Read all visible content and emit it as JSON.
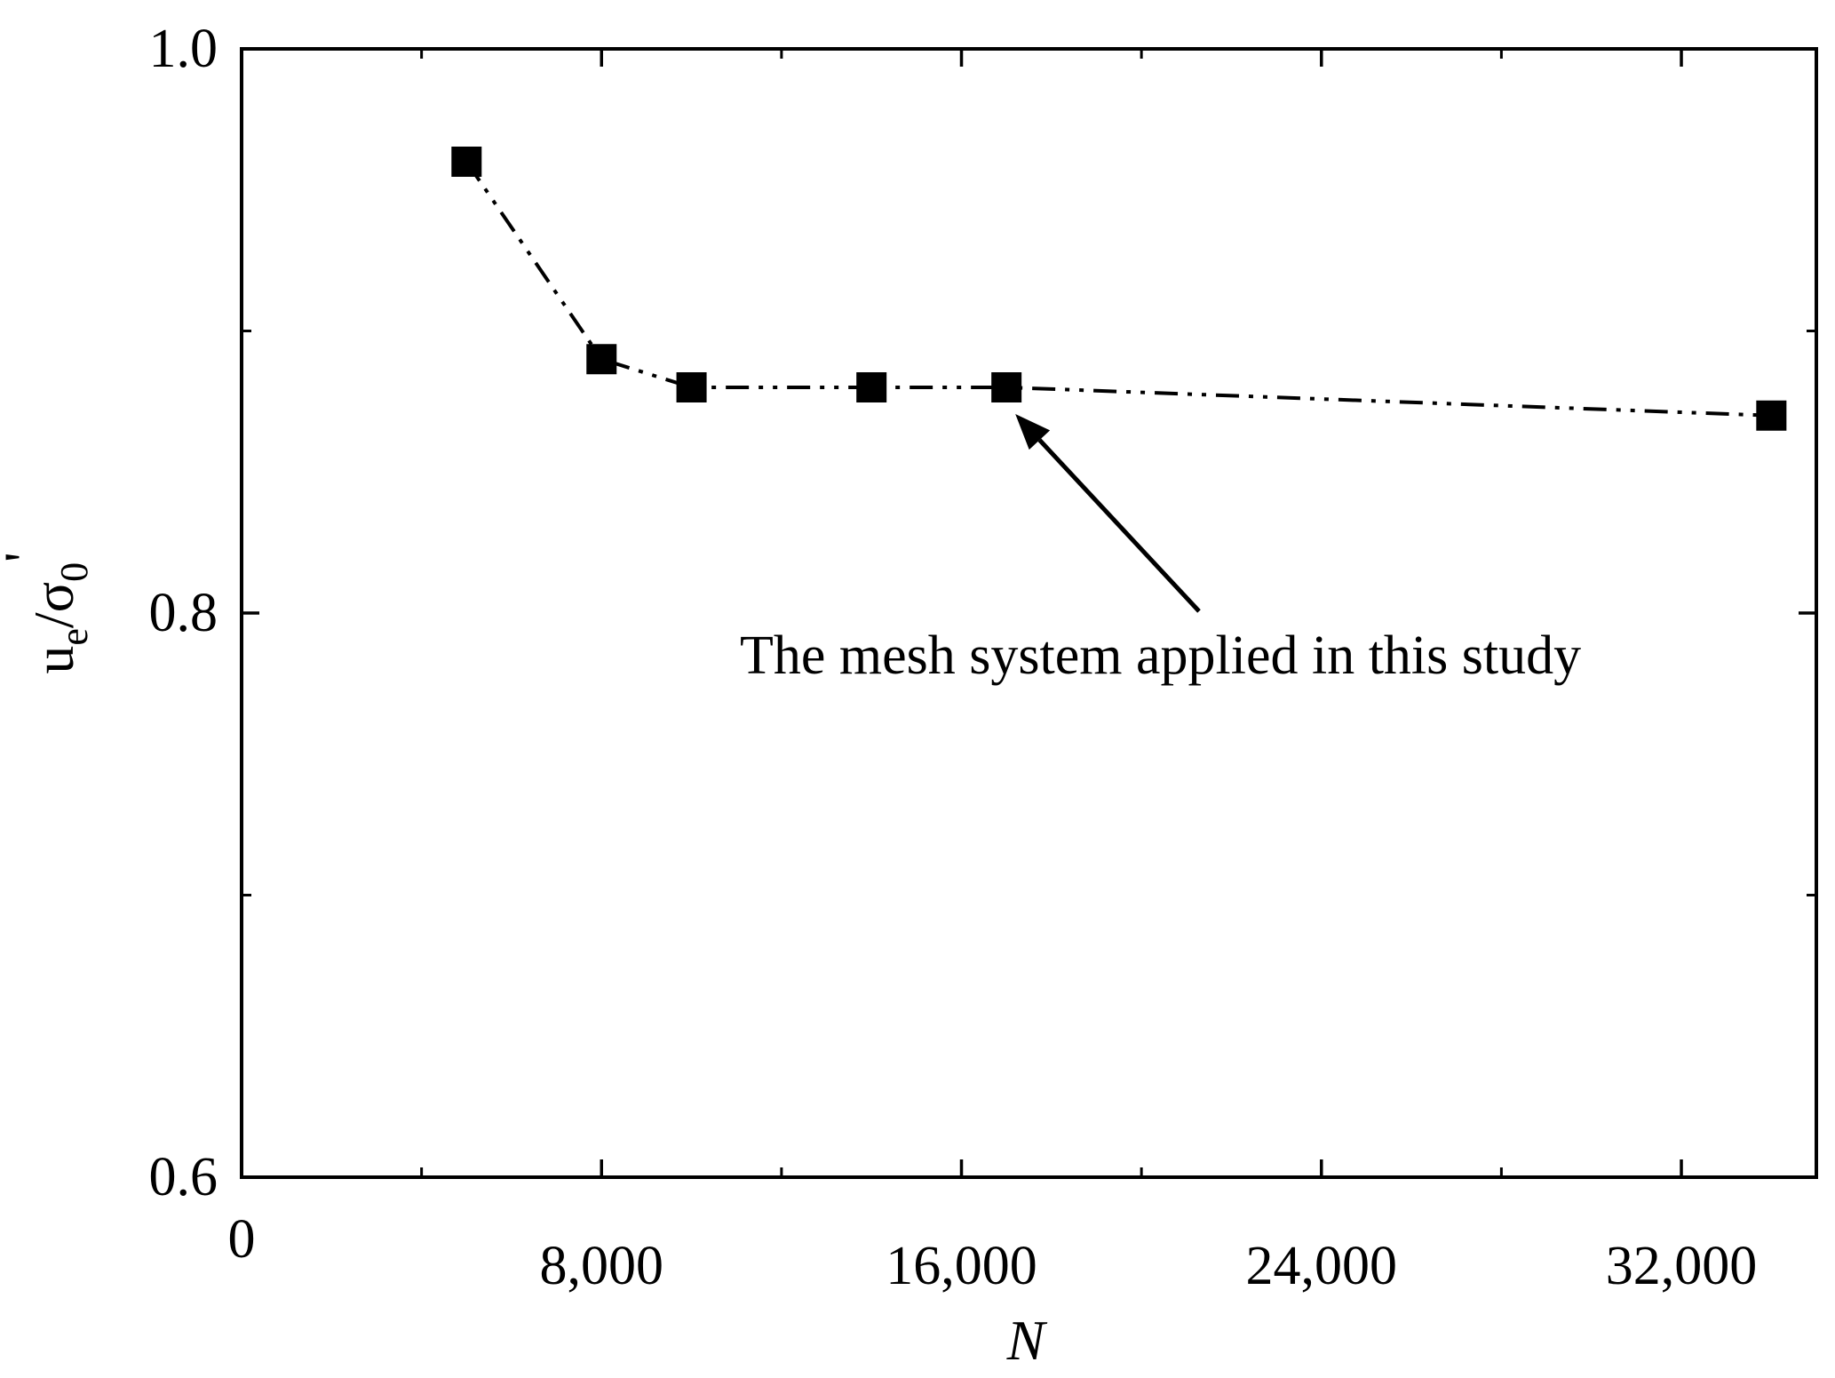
{
  "chart_data": {
    "type": "line",
    "xlabel": "N",
    "ylabel": {
      "base": "u",
      "sub1": "e",
      "slash": "/σ",
      "sub2": "0",
      "prime": "'"
    },
    "xlim": [
      0,
      35000
    ],
    "ylim": [
      0.6,
      1.0
    ],
    "x_ticks": [
      0,
      8000,
      16000,
      24000,
      32000
    ],
    "x_tick_labels": [
      "0",
      "8,000",
      "16,000",
      "24,000",
      "32,000"
    ],
    "x_minor_ticks": [
      4000,
      12000,
      20000,
      28000
    ],
    "y_ticks": [
      0.6,
      0.8,
      1.0
    ],
    "y_tick_labels": [
      "0.6",
      "0.8",
      "1.0"
    ],
    "y_minor_ticks": [
      0.7,
      0.9
    ],
    "grid": false,
    "series": [
      {
        "marker": "square",
        "line_style": "dash-dot-dot",
        "color": "#000000",
        "x": [
          5000,
          8000,
          10000,
          14000,
          17000,
          34000
        ],
        "y": [
          0.96,
          0.89,
          0.88,
          0.88,
          0.88,
          0.87
        ]
      }
    ],
    "annotation": {
      "text": "The mesh system applied in this study",
      "points_to_x": 17000,
      "points_to_y": 0.88
    }
  }
}
